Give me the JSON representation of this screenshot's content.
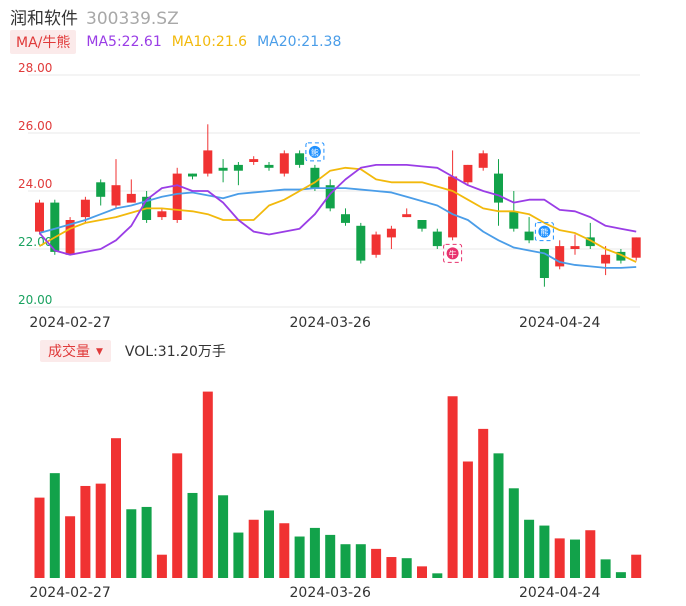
{
  "header": {
    "name": "润和软件",
    "code": "300339.SZ"
  },
  "ma_legend": {
    "tag": "MA/牛熊",
    "items": [
      {
        "label": "MA5:22.61",
        "color": "#9a3de6"
      },
      {
        "label": "MA10:21.6",
        "color": "#f2b90c"
      },
      {
        "label": "MA20:21.38",
        "color": "#4a9de8"
      }
    ]
  },
  "vol_legend": {
    "tag": "成交量",
    "text": "VOL:31.20万手"
  },
  "colors": {
    "up": "#f03232",
    "down": "#12a24a",
    "grid": "#e8e8e8"
  },
  "chart_data": [
    {
      "type": "candlestick",
      "y_ticks": [
        "28.00",
        "26.00",
        "24.00",
        "22.00",
        "20.00"
      ],
      "ylim": [
        20,
        28
      ],
      "x_ticks": [
        {
          "label": "2024-02-27",
          "index": 2
        },
        {
          "label": "2024-03-26",
          "index": 19
        },
        {
          "label": "2024-04-24",
          "index": 34
        }
      ],
      "candles": [
        {
          "open": 22.6,
          "close": 23.6,
          "high": 23.7,
          "low": 22.5
        },
        {
          "open": 23.6,
          "close": 21.9,
          "high": 23.7,
          "low": 21.8
        },
        {
          "open": 21.8,
          "close": 23.0,
          "high": 23.1,
          "low": 21.8
        },
        {
          "open": 23.1,
          "close": 23.7,
          "high": 23.8,
          "low": 22.9
        },
        {
          "open": 24.3,
          "close": 23.8,
          "high": 24.4,
          "low": 23.5
        },
        {
          "open": 23.5,
          "close": 24.2,
          "high": 25.1,
          "low": 23.4
        },
        {
          "open": 23.6,
          "close": 23.9,
          "high": 24.4,
          "low": 23.6
        },
        {
          "open": 23.8,
          "close": 23.0,
          "high": 24.0,
          "low": 22.9
        },
        {
          "open": 23.1,
          "close": 23.3,
          "high": 23.4,
          "low": 23.0
        },
        {
          "open": 23.0,
          "close": 24.6,
          "high": 24.8,
          "low": 22.9
        },
        {
          "open": 24.6,
          "close": 24.5,
          "high": 24.6,
          "low": 24.4
        },
        {
          "open": 24.6,
          "close": 25.4,
          "high": 26.3,
          "low": 24.5
        },
        {
          "open": 24.8,
          "close": 24.7,
          "high": 25.1,
          "low": 24.3
        },
        {
          "open": 24.9,
          "close": 24.7,
          "high": 25.0,
          "low": 24.2
        },
        {
          "open": 25.0,
          "close": 25.1,
          "high": 25.2,
          "low": 24.9
        },
        {
          "open": 24.9,
          "close": 24.8,
          "high": 25.0,
          "low": 24.7
        },
        {
          "open": 24.6,
          "close": 25.3,
          "high": 25.4,
          "low": 24.5
        },
        {
          "open": 25.3,
          "close": 24.9,
          "high": 25.4,
          "low": 24.8
        },
        {
          "open": 24.8,
          "close": 24.1,
          "high": 24.9,
          "low": 24.0
        },
        {
          "open": 24.2,
          "close": 23.4,
          "high": 24.4,
          "low": 23.3
        },
        {
          "open": 23.2,
          "close": 22.9,
          "high": 23.4,
          "low": 22.8
        },
        {
          "open": 22.8,
          "close": 21.6,
          "high": 22.9,
          "low": 21.5
        },
        {
          "open": 21.8,
          "close": 22.5,
          "high": 22.6,
          "low": 21.7
        },
        {
          "open": 22.4,
          "close": 22.7,
          "high": 22.8,
          "low": 22.0
        },
        {
          "open": 23.1,
          "close": 23.2,
          "high": 23.4,
          "low": 23.1
        },
        {
          "open": 23.0,
          "close": 22.7,
          "high": 23.0,
          "low": 22.6
        },
        {
          "open": 22.6,
          "close": 22.1,
          "high": 22.7,
          "low": 22.0
        },
        {
          "open": 22.4,
          "close": 24.5,
          "high": 25.4,
          "low": 22.3
        },
        {
          "open": 24.3,
          "close": 24.9,
          "high": 24.9,
          "low": 24.2
        },
        {
          "open": 24.8,
          "close": 25.3,
          "high": 25.4,
          "low": 24.7
        },
        {
          "open": 24.6,
          "close": 23.6,
          "high": 25.1,
          "low": 22.8
        },
        {
          "open": 23.3,
          "close": 22.7,
          "high": 24.0,
          "low": 22.6
        },
        {
          "open": 22.6,
          "close": 22.3,
          "high": 23.1,
          "low": 22.2
        },
        {
          "open": 22.0,
          "close": 21.0,
          "high": 22.0,
          "low": 20.7
        },
        {
          "open": 21.4,
          "close": 22.1,
          "high": 22.3,
          "low": 21.3
        },
        {
          "open": 22.0,
          "close": 22.1,
          "high": 22.5,
          "low": 21.8
        },
        {
          "open": 22.4,
          "close": 22.1,
          "high": 22.9,
          "low": 22.0
        },
        {
          "open": 21.5,
          "close": 21.8,
          "high": 22.1,
          "low": 21.1
        },
        {
          "open": 21.9,
          "close": 21.6,
          "high": 22.0,
          "low": 21.5
        },
        {
          "open": 21.7,
          "close": 22.4,
          "high": 22.4,
          "low": 21.6
        }
      ],
      "ma5": [
        22.55,
        21.95,
        21.8,
        21.9,
        22.0,
        22.3,
        22.8,
        23.7,
        24.1,
        24.2,
        24.0,
        24.0,
        23.6,
        23.0,
        22.6,
        22.5,
        22.6,
        22.7,
        23.2,
        23.9,
        24.4,
        24.8,
        24.9,
        24.9,
        24.9,
        24.85,
        24.8,
        24.5,
        24.2,
        24.0,
        23.85,
        23.6,
        23.7,
        23.7,
        23.35,
        23.3,
        23.1,
        22.8,
        22.7,
        22.6
      ],
      "ma10": [
        22.1,
        22.4,
        22.7,
        22.9,
        23.0,
        23.1,
        23.25,
        23.4,
        23.4,
        23.35,
        23.3,
        23.2,
        23.0,
        23.0,
        23.0,
        23.5,
        23.7,
        24.0,
        24.3,
        24.7,
        24.8,
        24.75,
        24.4,
        24.3,
        24.3,
        24.3,
        24.15,
        24.0,
        23.7,
        23.4,
        23.3,
        23.3,
        23.2,
        22.9,
        22.65,
        22.55,
        22.3,
        22.0,
        21.8,
        21.55
      ],
      "ma20": [
        22.55,
        22.7,
        22.85,
        23.0,
        23.2,
        23.4,
        23.5,
        23.65,
        23.8,
        23.9,
        23.95,
        23.85,
        23.75,
        23.9,
        23.95,
        24.0,
        24.05,
        24.05,
        24.1,
        24.1,
        24.1,
        24.05,
        24.0,
        23.95,
        23.8,
        23.65,
        23.5,
        23.2,
        23.0,
        22.6,
        22.3,
        22.05,
        21.95,
        21.85,
        21.55,
        21.45,
        21.4,
        21.35,
        21.35,
        21.38
      ],
      "markers": [
        {
          "index": 18,
          "price": 25.35,
          "glyph": "熊",
          "color": "#1e90ff"
        },
        {
          "index": 27,
          "price": 21.85,
          "glyph": "牛",
          "color": "#e8336e"
        },
        {
          "index": 33,
          "price": 22.6,
          "glyph": "熊",
          "color": "#1e90ff"
        }
      ]
    },
    {
      "type": "bar",
      "name": "成交量",
      "values": [
        34.5,
        45.0,
        26.5,
        39.5,
        40.5,
        60.0,
        29.5,
        30.5,
        10.0,
        53.5,
        36.5,
        80.0,
        35.5,
        19.5,
        25.0,
        29.0,
        23.5,
        17.8,
        21.5,
        18.5,
        14.5,
        14.5,
        12.5,
        9.0,
        8.5,
        5.0,
        2.0,
        78.0,
        50.0,
        64.0,
        53.5,
        38.5,
        25.0,
        22.5,
        17.0,
        16.5,
        20.5,
        8.0,
        2.5,
        10.0
      ],
      "up": [
        true,
        false,
        true,
        true,
        true,
        true,
        false,
        false,
        true,
        true,
        false,
        true,
        false,
        false,
        true,
        false,
        true,
        false,
        false,
        false,
        false,
        false,
        true,
        true,
        false,
        true,
        false,
        true,
        true,
        true,
        false,
        false,
        false,
        false,
        true,
        false,
        true,
        false,
        false,
        true
      ]
    }
  ]
}
